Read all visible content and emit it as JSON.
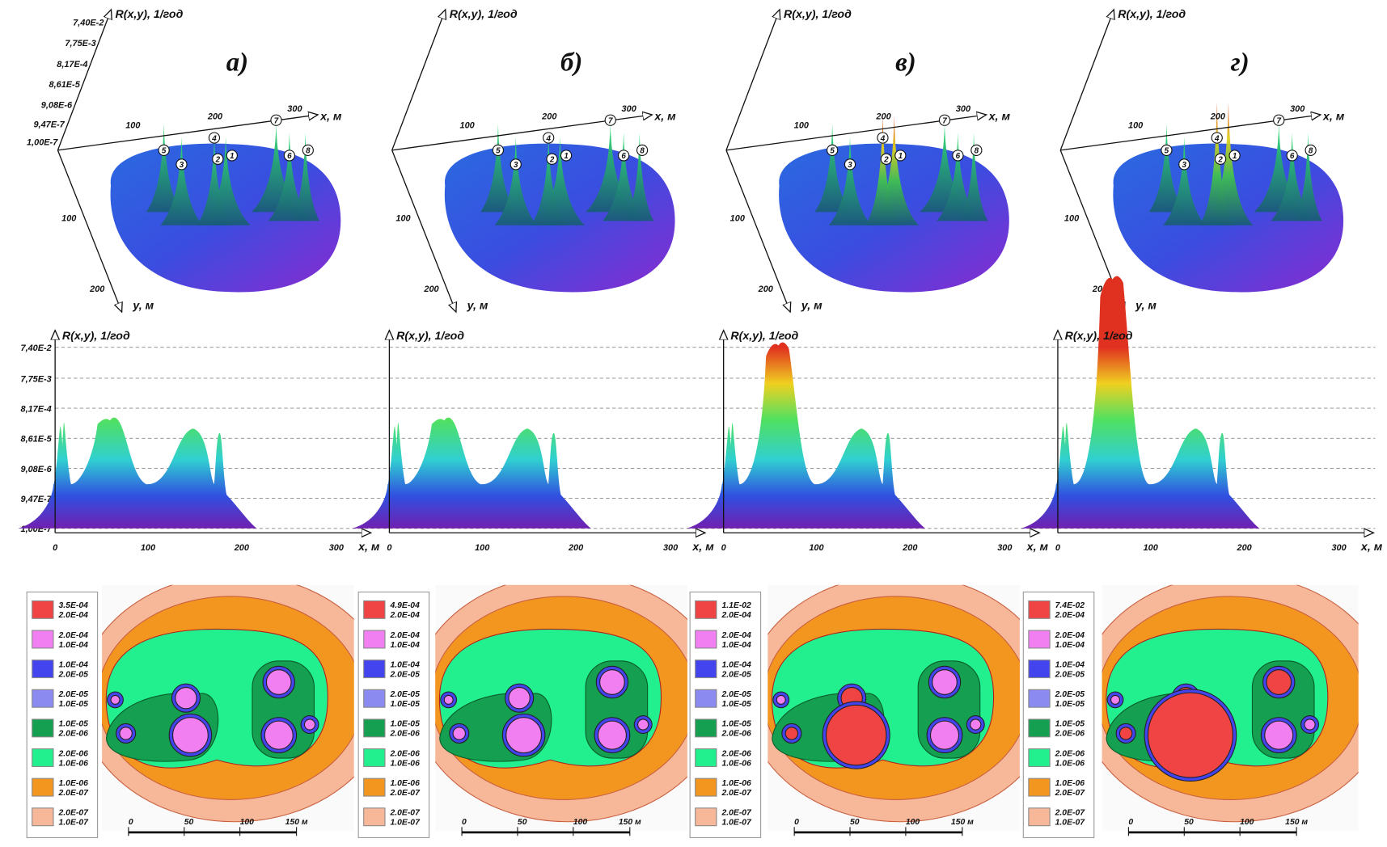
{
  "axis_title": "R(x,y), 1/год",
  "r_ticks": [
    "7,40E-2",
    "7,75E-3",
    "8,17E-4",
    "8,61E-5",
    "9,08E-6",
    "9,47E-7",
    "1,00E-7"
  ],
  "x_ticks_3d": [
    "100",
    "200",
    "300"
  ],
  "y_ticks_3d": [
    "100",
    "200"
  ],
  "x_label": "x, м",
  "y_label": "y, м",
  "profile_x_ticks": [
    "0",
    "100",
    "200",
    "300"
  ],
  "points": [
    "1",
    "2",
    "3",
    "4",
    "5",
    "6",
    "7",
    "8"
  ],
  "scale_labels": [
    "0",
    "50",
    "100",
    "150 м"
  ],
  "legend_colors": [
    "#f04444",
    "#f27ff2",
    "#4444ee",
    "#8a8af0",
    "#14a050",
    "#22f08e",
    "#f3961f",
    "#f7b89a"
  ],
  "panels": [
    {
      "label": "а)",
      "legend": [
        [
          "3.5E-04",
          "2.0E-04"
        ],
        [
          "2.0E-04",
          "1.0E-04"
        ],
        [
          "1.0E-04",
          "2.0E-05"
        ],
        [
          "2.0E-05",
          "1.0E-05"
        ],
        [
          "1.0E-05",
          "2.0E-06"
        ],
        [
          "2.0E-06",
          "1.0E-06"
        ],
        [
          "1.0E-06",
          "2.0E-07"
        ],
        [
          "2.0E-07",
          "1.0E-07"
        ]
      ]
    },
    {
      "label": "б)",
      "legend": [
        [
          "4.9E-04",
          "2.0E-04"
        ],
        [
          "2.0E-04",
          "1.0E-04"
        ],
        [
          "1.0E-04",
          "2.0E-05"
        ],
        [
          "2.0E-05",
          "1.0E-05"
        ],
        [
          "1.0E-05",
          "2.0E-06"
        ],
        [
          "2.0E-06",
          "1.0E-06"
        ],
        [
          "1.0E-06",
          "2.0E-07"
        ],
        [
          "2.0E-07",
          "1.0E-07"
        ]
      ]
    },
    {
      "label": "в)",
      "legend": [
        [
          "1.1E-02",
          "2.0E-04"
        ],
        [
          "2.0E-04",
          "1.0E-04"
        ],
        [
          "1.0E-04",
          "2.0E-05"
        ],
        [
          "2.0E-05",
          "1.0E-05"
        ],
        [
          "1.0E-05",
          "2.0E-06"
        ],
        [
          "2.0E-06",
          "1.0E-06"
        ],
        [
          "1.0E-06",
          "2.0E-07"
        ],
        [
          "2.0E-07",
          "1.0E-07"
        ]
      ]
    },
    {
      "label": "г)",
      "legend": [
        [
          "7.4E-02",
          "2.0E-04"
        ],
        [
          "2.0E-04",
          "1.0E-04"
        ],
        [
          "1.0E-04",
          "2.0E-05"
        ],
        [
          "2.0E-05",
          "1.0E-05"
        ],
        [
          "1.0E-05",
          "2.0E-06"
        ],
        [
          "2.0E-06",
          "1.0E-06"
        ],
        [
          "1.0E-06",
          "2.0E-07"
        ],
        [
          "2.0E-07",
          "1.0E-07"
        ]
      ]
    }
  ]
}
